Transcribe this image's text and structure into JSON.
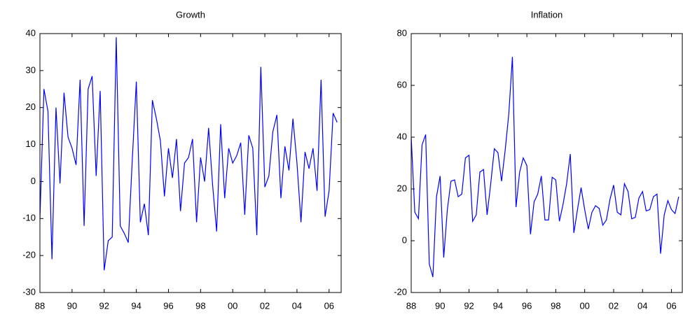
{
  "chart_data": [
    {
      "type": "line",
      "title": "Growth",
      "color": "#0000ff",
      "x": [
        1988,
        1988.25,
        1988.5,
        1988.75,
        1989,
        1989.25,
        1989.5,
        1989.75,
        1990,
        1990.25,
        1990.5,
        1990.75,
        1991,
        1991.25,
        1991.5,
        1991.75,
        1992,
        1992.25,
        1992.5,
        1992.75,
        1993,
        1993.25,
        1993.5,
        1993.75,
        1994,
        1994.25,
        1994.5,
        1994.75,
        1995,
        1995.25,
        1995.5,
        1995.75,
        1996,
        1996.25,
        1996.5,
        1996.75,
        1997,
        1997.25,
        1997.5,
        1997.75,
        1998,
        1998.25,
        1998.5,
        1998.75,
        1999,
        1999.25,
        1999.5,
        1999.75,
        2000,
        2000.25,
        2000.5,
        2000.75,
        2001,
        2001.25,
        2001.5,
        2001.75,
        2002,
        2002.25,
        2002.5,
        2002.75,
        2003,
        2003.25,
        2003.5,
        2003.75,
        2004,
        2004.25,
        2004.5,
        2004.75,
        2005,
        2005.25,
        2005.5,
        2005.75,
        2006,
        2006.25,
        2006.5
      ],
      "values": [
        -10,
        25,
        19,
        -21,
        20,
        -0.5,
        24,
        12,
        9,
        4.5,
        27.5,
        -12,
        25,
        28.5,
        1.5,
        24.5,
        -24,
        -16,
        -15,
        39,
        -12,
        -14,
        -16.5,
        6,
        27,
        -11,
        -6,
        -14.5,
        22,
        17,
        11,
        -4,
        9,
        1,
        11.5,
        -8,
        5,
        6.5,
        11.5,
        -11,
        6.5,
        0,
        14.5,
        -1,
        -13.5,
        15.5,
        -4.5,
        9,
        5,
        7,
        10.5,
        -9,
        12.5,
        9,
        -14.5,
        31,
        -1.5,
        1.5,
        13.5,
        18,
        -4.5,
        9.5,
        3,
        17,
        5,
        -11,
        8,
        3.5,
        9,
        -2.5,
        27.5,
        -9.5,
        -2.5,
        18.5,
        16
      ],
      "xlim": [
        1988,
        2006.75
      ],
      "xticks": [
        {
          "value": 1988,
          "label": "88"
        },
        {
          "value": 1990,
          "label": "90"
        },
        {
          "value": 1992,
          "label": "92"
        },
        {
          "value": 1994,
          "label": "94"
        },
        {
          "value": 1996,
          "label": "96"
        },
        {
          "value": 1998,
          "label": "98"
        },
        {
          "value": 2000,
          "label": "00"
        },
        {
          "value": 2002,
          "label": "02"
        },
        {
          "value": 2004,
          "label": "04"
        },
        {
          "value": 2006,
          "label": "06"
        }
      ],
      "ylim": [
        -30,
        40
      ],
      "yticks": [
        -30,
        -20,
        -10,
        0,
        10,
        20,
        30,
        40
      ]
    },
    {
      "type": "line",
      "title": "Inflation",
      "color": "#0000ff",
      "x": [
        1988,
        1988.25,
        1988.5,
        1988.75,
        1989,
        1989.25,
        1989.5,
        1989.75,
        1990,
        1990.25,
        1990.5,
        1990.75,
        1991,
        1991.25,
        1991.5,
        1991.75,
        1992,
        1992.25,
        1992.5,
        1992.75,
        1993,
        1993.25,
        1993.5,
        1993.75,
        1994,
        1994.25,
        1994.5,
        1994.75,
        1995,
        1995.25,
        1995.5,
        1995.75,
        1996,
        1996.25,
        1996.5,
        1996.75,
        1997,
        1997.25,
        1997.5,
        1997.75,
        1998,
        1998.25,
        1998.5,
        1998.75,
        1999,
        1999.25,
        1999.5,
        1999.75,
        2000,
        2000.25,
        2000.5,
        2000.75,
        2001,
        2001.25,
        2001.5,
        2001.75,
        2002,
        2002.25,
        2002.5,
        2002.75,
        2003,
        2003.25,
        2003.5,
        2003.75,
        2004,
        2004.25,
        2004.5,
        2004.75,
        2005,
        2005.25,
        2005.5,
        2005.75,
        2006,
        2006.25,
        2006.5
      ],
      "values": [
        40,
        11,
        8.5,
        37,
        41,
        -9,
        -14,
        17,
        25,
        -6.5,
        12,
        23,
        23.5,
        17,
        18,
        32,
        33,
        7.5,
        10,
        26.5,
        27.5,
        10,
        22,
        35.5,
        34,
        23,
        35,
        49,
        71,
        13,
        26.5,
        32,
        29,
        2.5,
        15,
        18,
        25,
        8,
        8,
        24.5,
        23.5,
        7.5,
        14,
        22,
        33.5,
        3,
        12,
        20.5,
        12,
        4.5,
        11,
        13.5,
        12.5,
        6,
        8,
        16,
        21.5,
        11,
        10,
        22,
        19,
        8.5,
        9,
        16.5,
        19,
        11.5,
        12,
        17,
        18,
        -5,
        10,
        15.5,
        12,
        10.5,
        17
      ],
      "xlim": [
        1988,
        2006.75
      ],
      "xticks": [
        {
          "value": 1988,
          "label": "88"
        },
        {
          "value": 1990,
          "label": "90"
        },
        {
          "value": 1992,
          "label": "92"
        },
        {
          "value": 1994,
          "label": "94"
        },
        {
          "value": 1996,
          "label": "96"
        },
        {
          "value": 1998,
          "label": "98"
        },
        {
          "value": 2000,
          "label": "00"
        },
        {
          "value": 2002,
          "label": "02"
        },
        {
          "value": 2004,
          "label": "04"
        },
        {
          "value": 2006,
          "label": "06"
        }
      ],
      "ylim": [
        -20,
        80
      ],
      "yticks": [
        -20,
        0,
        20,
        40,
        60,
        80
      ]
    }
  ]
}
